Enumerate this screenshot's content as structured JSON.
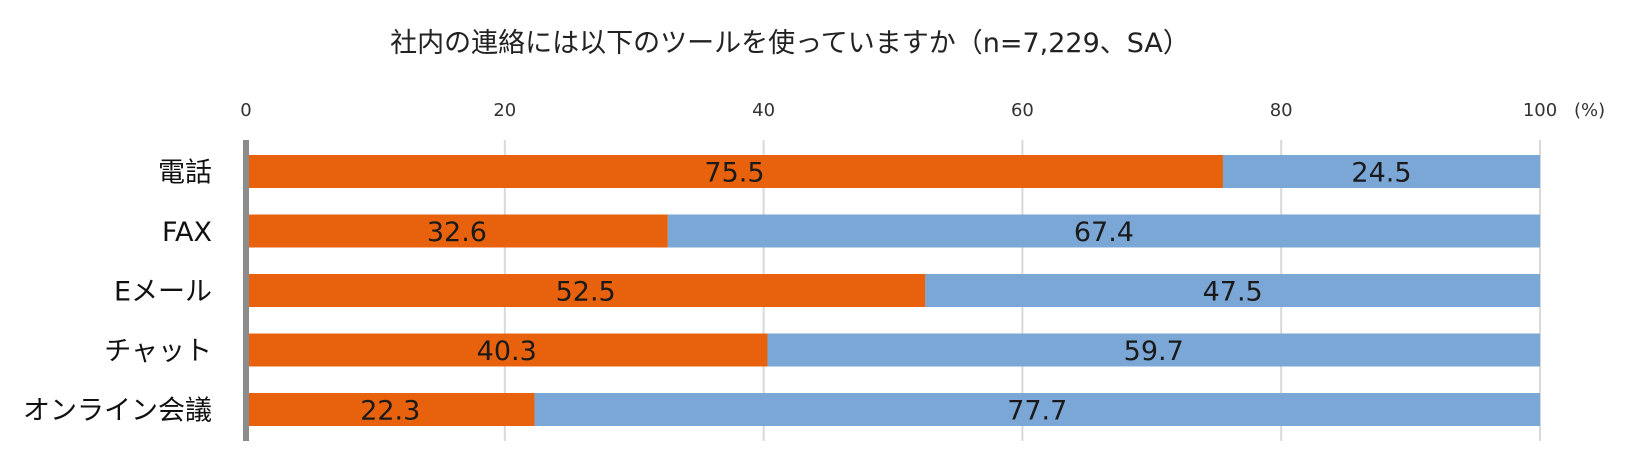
{
  "chart_data": {
    "type": "bar",
    "orientation": "horizontal",
    "stacked": true,
    "title": "社内の連絡には以下のツールを使っていますか（n=7,229、SA）",
    "unit": "(%)",
    "xlim": [
      0,
      100
    ],
    "x_ticks": [
      "0",
      "20",
      "40",
      "60",
      "80",
      "100"
    ],
    "categories": [
      "電話",
      "FAX",
      "Eメール",
      "チャット",
      "オンライン会議"
    ],
    "series": [
      {
        "values": [
          75.5,
          32.6,
          52.5,
          40.3,
          22.3
        ],
        "labels": [
          "75.5",
          "32.6",
          "52.5",
          "40.3",
          "22.3"
        ]
      },
      {
        "values": [
          24.5,
          67.4,
          47.5,
          59.7,
          77.7
        ],
        "labels": [
          "24.5",
          "67.4",
          "47.5",
          "59.7",
          "77.7"
        ]
      }
    ],
    "grid": true,
    "legend": "none",
    "colors": {
      "series_1": "#e8620e",
      "series_2": "#7ba7d6",
      "grid": "#d9d9d9",
      "axis": "#8c8c8c"
    }
  }
}
